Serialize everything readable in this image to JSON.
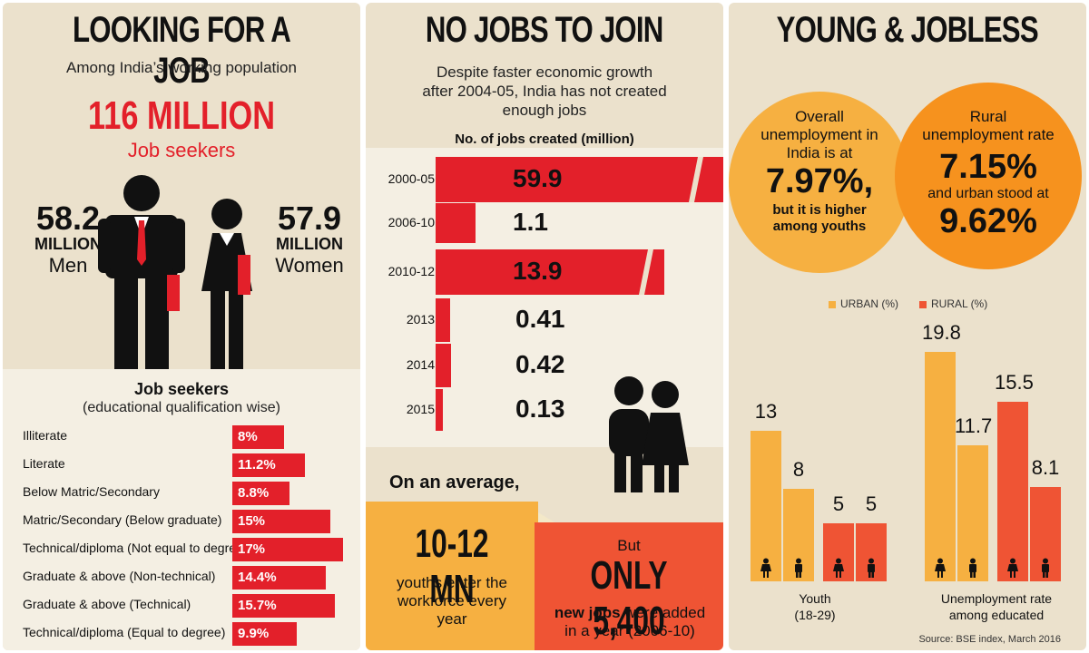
{
  "colors": {
    "red": "#e3202a",
    "orange": "#f6b041",
    "orange_dark": "#ef5434",
    "bg": "#ebe1cc"
  },
  "panel1": {
    "title": "LOOKING FOR A JOB",
    "subtitle": "Among India’s working population",
    "headline": "116 MILLION",
    "headline_sub": "Job seekers",
    "men_value": "58.2",
    "men_unit": "MILLION",
    "men_label": "Men",
    "women_value": "57.9",
    "women_unit": "MILLION",
    "women_label": "Women",
    "edu_title": "Job seekers",
    "edu_subtitle": "(educational qualification wise)"
  },
  "panel2": {
    "title": "NO JOBS TO JOIN",
    "subtitle": "Despite faster economic growth after 2004-05, India has not created enough jobs",
    "chart_title": "No. of jobs created (million)",
    "avg_label": "On an average,",
    "youth_value": "10-12 MN",
    "youth_text": "youths enter the workforce every year",
    "but": "But",
    "only_value": "ONLY 5,400",
    "only_bold": "new jobs",
    "only_text": " were added in a year (2006-10)"
  },
  "panel3": {
    "title": "YOUNG & JOBLESS",
    "circle1_text": "Overall unemployment in India is at",
    "circle1_value": "7.97%,",
    "circle1_tail": "but it is higher among youths",
    "circle2_text": "Rural unemployment rate",
    "circle2_value1": "7.15%",
    "circle2_mid": "and urban stood at",
    "circle2_value2": "9.62%",
    "legend_urban": "URBAN (%)",
    "legend_rural": "RURAL (%)",
    "source": "Source: BSE index, March 2016"
  },
  "chart_data": [
    {
      "type": "bar",
      "title": "Job seekers (educational qualification wise)",
      "categories": [
        "Illiterate",
        "Literate",
        "Below Matric/Secondary",
        "Matric/Secondary (Below graduate)",
        "Technical/diploma (Not equal to degree)",
        "Graduate & above (Non-technical)",
        "Graduate & above (Technical)",
        "Technical/diploma (Equal to degree)"
      ],
      "values": [
        8,
        11.2,
        8.8,
        15,
        17,
        14.4,
        15.7,
        9.9
      ],
      "labels": [
        "8%",
        "11.2%",
        "8.8%",
        "15%",
        "17%",
        "14.4%",
        "15.7%",
        "9.9%"
      ],
      "unit": "%"
    },
    {
      "type": "bar",
      "title": "No. of jobs created (million)",
      "categories": [
        "2000-05",
        "2006-10",
        "2010-12",
        "2013",
        "2014",
        "2015"
      ],
      "values": [
        59.9,
        1.1,
        13.9,
        0.41,
        0.42,
        0.13
      ],
      "labels": [
        "59.9",
        "1.1",
        "13.9",
        "0.41",
        "0.42",
        "0.13"
      ]
    },
    {
      "type": "bar",
      "series": [
        {
          "name": "URBAN (%)",
          "values": [
            13,
            19.8
          ]
        },
        {
          "name": "RURAL (%)",
          "values": [
            5,
            15.5
          ]
        }
      ],
      "groups": [
        {
          "name": "Youth (18-29)",
          "bars": [
            13,
            8,
            5,
            5
          ]
        },
        {
          "name": "Unemployment rate among educated",
          "bars": [
            19.8,
            11.7,
            15.5,
            8.1
          ]
        }
      ],
      "bar_labels": [
        "13",
        "8",
        "5",
        "5",
        "19.8",
        "11.7",
        "15.5",
        "8.1"
      ],
      "group_labels": [
        "Youth",
        "(18-29)",
        "Unemployment rate",
        "among educated"
      ]
    }
  ]
}
